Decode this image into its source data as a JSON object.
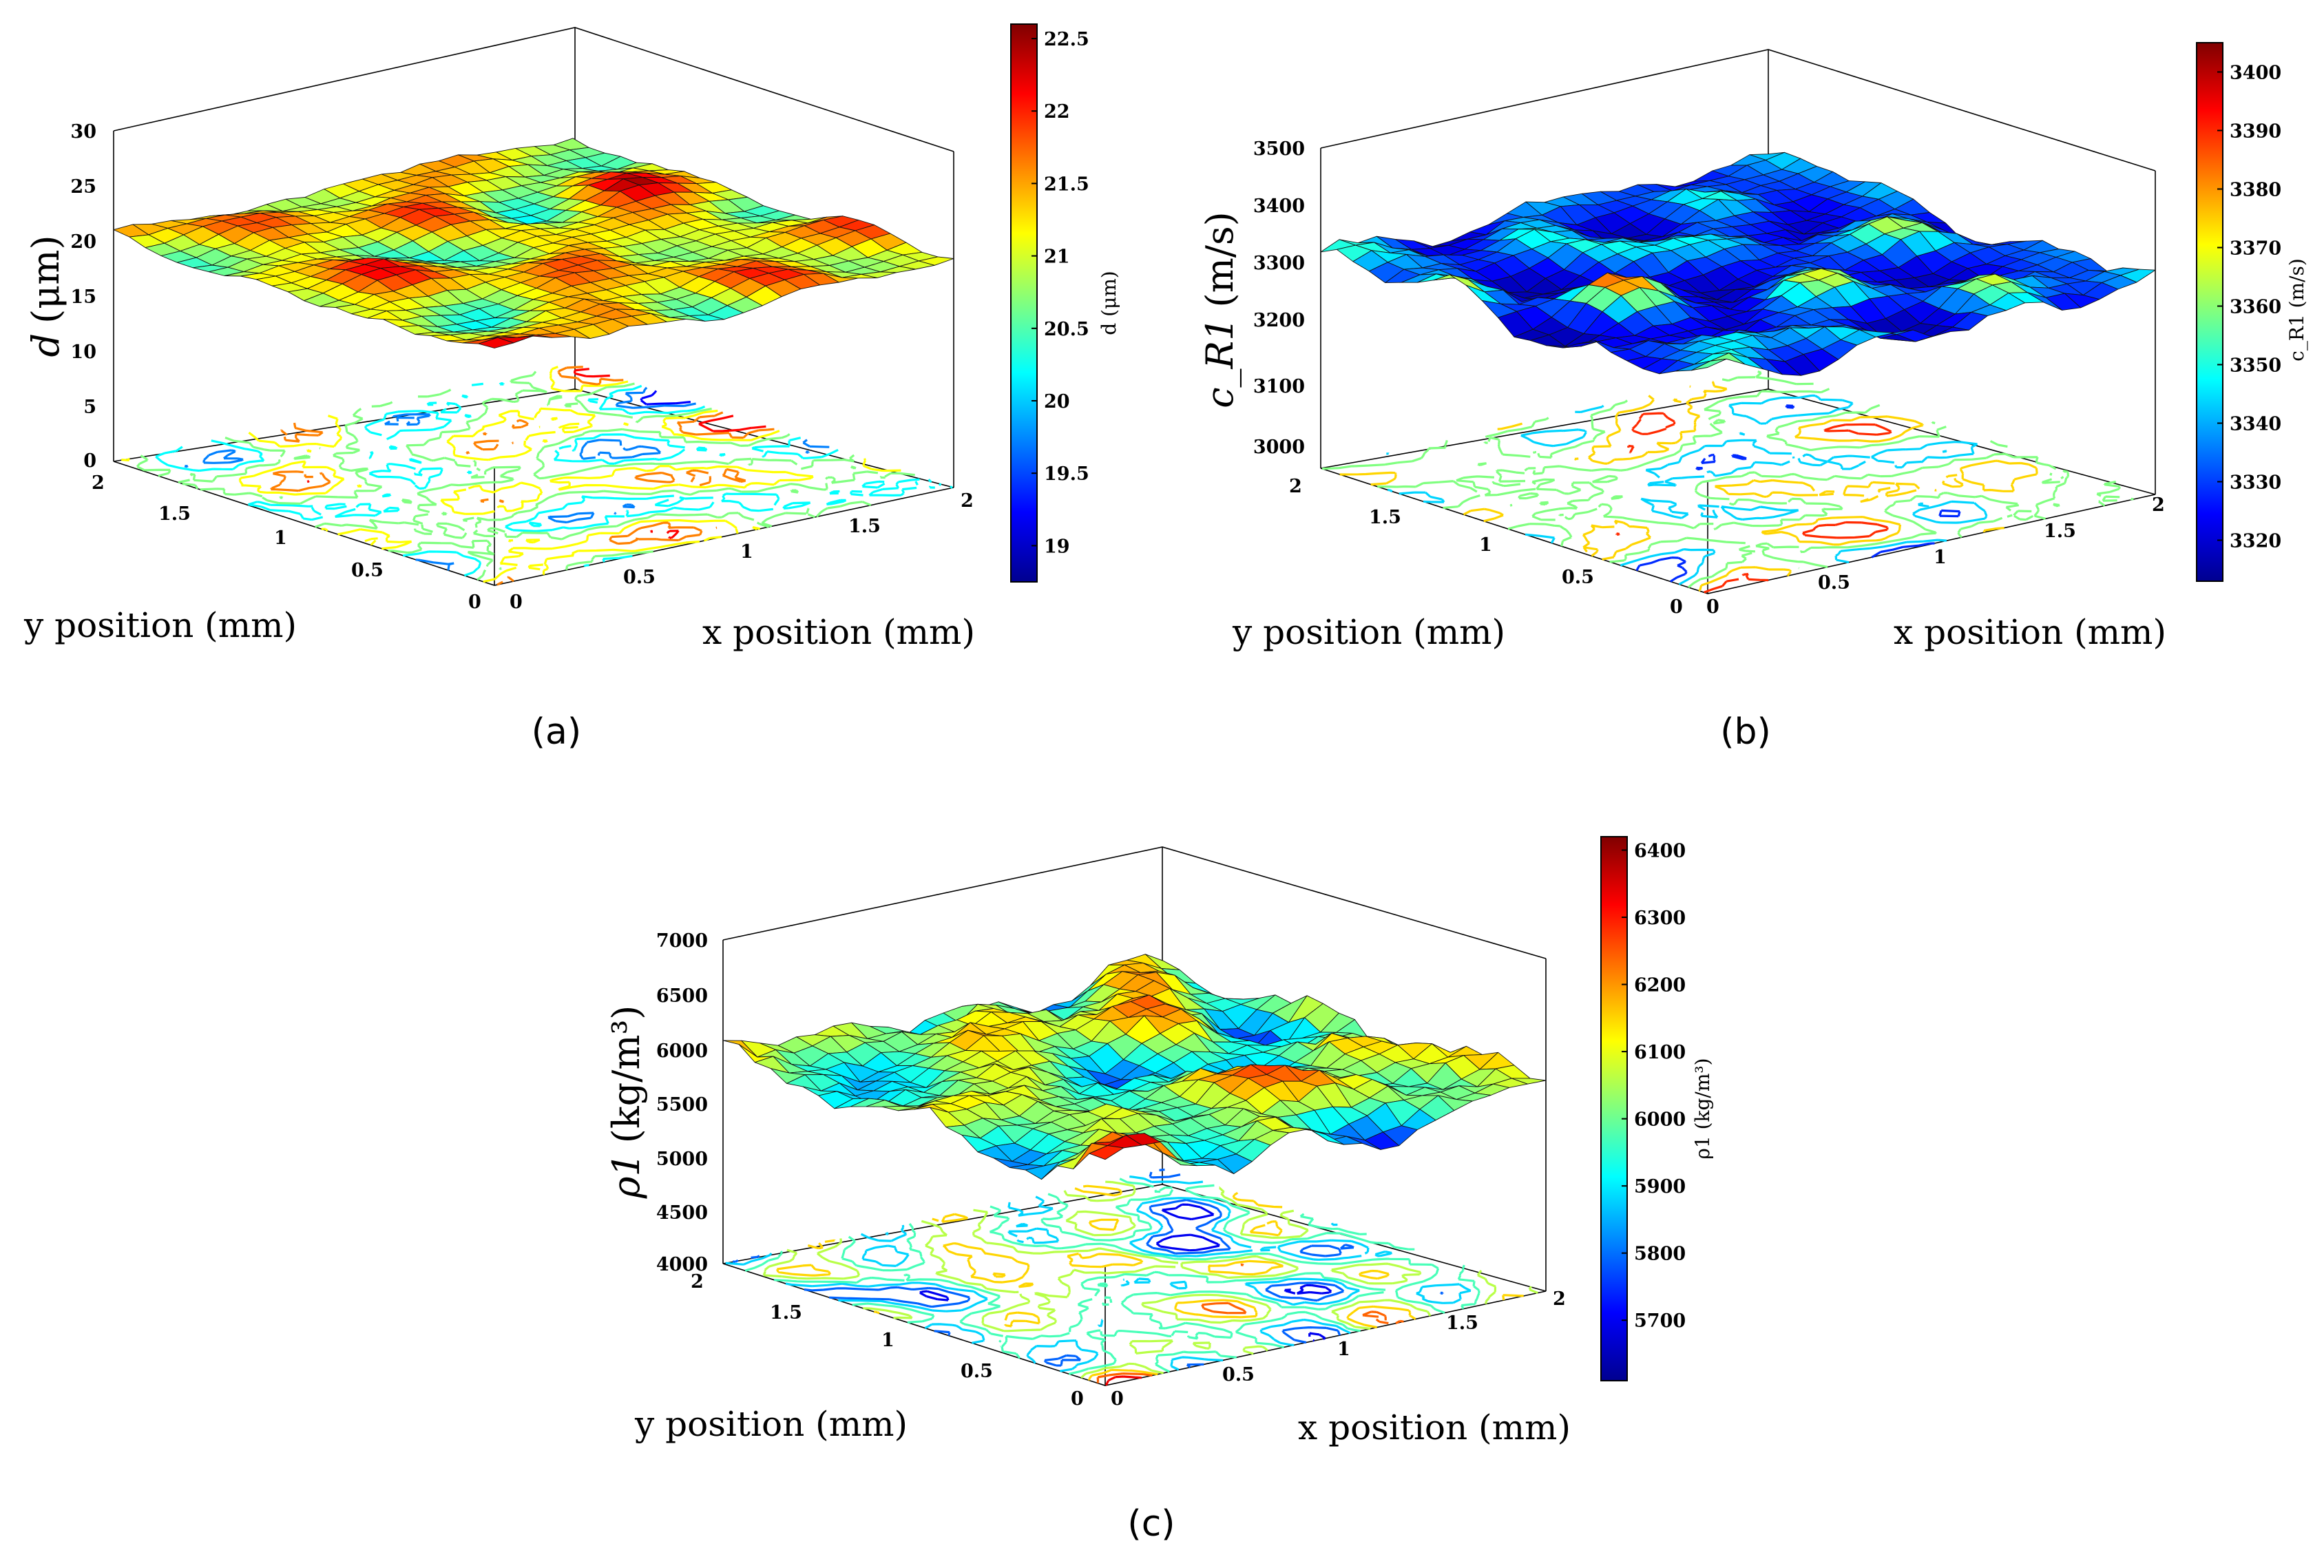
{
  "chart_data": [
    {
      "type": "surface+contour",
      "caption": "(a)",
      "zlabel_sym": "d",
      "zlabel_unit": "(μm)",
      "xlabel": "x position (mm)",
      "ylabel": "y position (mm)",
      "x_ticks": [
        "0",
        "0.5",
        "1",
        "1.5",
        "2"
      ],
      "y_ticks": [
        "0",
        "0.5",
        "1",
        "1.5",
        "2"
      ],
      "z_ticks": [
        "0",
        "5",
        "10",
        "15",
        "20",
        "25",
        "30"
      ],
      "zlim": [
        0,
        30
      ],
      "colorbar": {
        "ticks": [
          "19",
          "19.5",
          "20",
          "20.5",
          "21",
          "21.5",
          "22",
          "22.5"
        ],
        "range": [
          18.75,
          22.6
        ],
        "label": "d (μm)"
      },
      "surface": {
        "mean": 20.8,
        "spread": 1.2,
        "dist": "warm",
        "seed": 11
      },
      "contours": {
        "levels": 7,
        "seed": 17
      }
    },
    {
      "type": "surface+contour",
      "caption": "(b)",
      "zlabel_sym": "c_R1",
      "zlabel_unit": "(m/s)",
      "xlabel": "x position (mm)",
      "ylabel": "y position (mm)",
      "x_ticks": [
        "0",
        "0.5",
        "1",
        "1.5",
        "2"
      ],
      "y_ticks": [
        "0",
        "0.5",
        "1",
        "1.5",
        "2"
      ],
      "z_ticks": [
        "3000",
        "3100",
        "3200",
        "3300",
        "3400",
        "3500"
      ],
      "zlim": [
        2950,
        3500
      ],
      "colorbar": {
        "ticks": [
          "3320",
          "3330",
          "3340",
          "3350",
          "3360",
          "3370",
          "3380",
          "3390",
          "3400"
        ],
        "range": [
          3313,
          3405
        ],
        "label": "c_R1 (m/s)"
      },
      "surface": {
        "mean": 3318,
        "spread": 40,
        "dist": "cool",
        "seed": 23
      },
      "contours": {
        "levels": 5,
        "seed": 29
      }
    },
    {
      "type": "surface+contour",
      "caption": "(c)",
      "zlabel_sym": "ρ1",
      "zlabel_unit": "(kg/m³)",
      "xlabel": "x position (mm)",
      "ylabel": "y position (mm)",
      "x_ticks": [
        "0",
        "0.5",
        "1",
        "1.5",
        "2"
      ],
      "y_ticks": [
        "0",
        "0.5",
        "1",
        "1.5",
        "2"
      ],
      "z_ticks": [
        "4000",
        "4500",
        "5000",
        "5500",
        "6000",
        "6500",
        "7000"
      ],
      "zlim": [
        4000,
        7000
      ],
      "colorbar": {
        "ticks": [
          "5700",
          "5800",
          "5900",
          "6000",
          "6100",
          "6200",
          "6300",
          "6400"
        ],
        "range": [
          5610,
          6420
        ],
        "label": "ρ1 (kg/m³)"
      },
      "surface": {
        "mean": 5920,
        "spread": 280,
        "dist": "mid",
        "seed": 37
      },
      "contours": {
        "levels": 8,
        "seed": 41
      }
    }
  ]
}
